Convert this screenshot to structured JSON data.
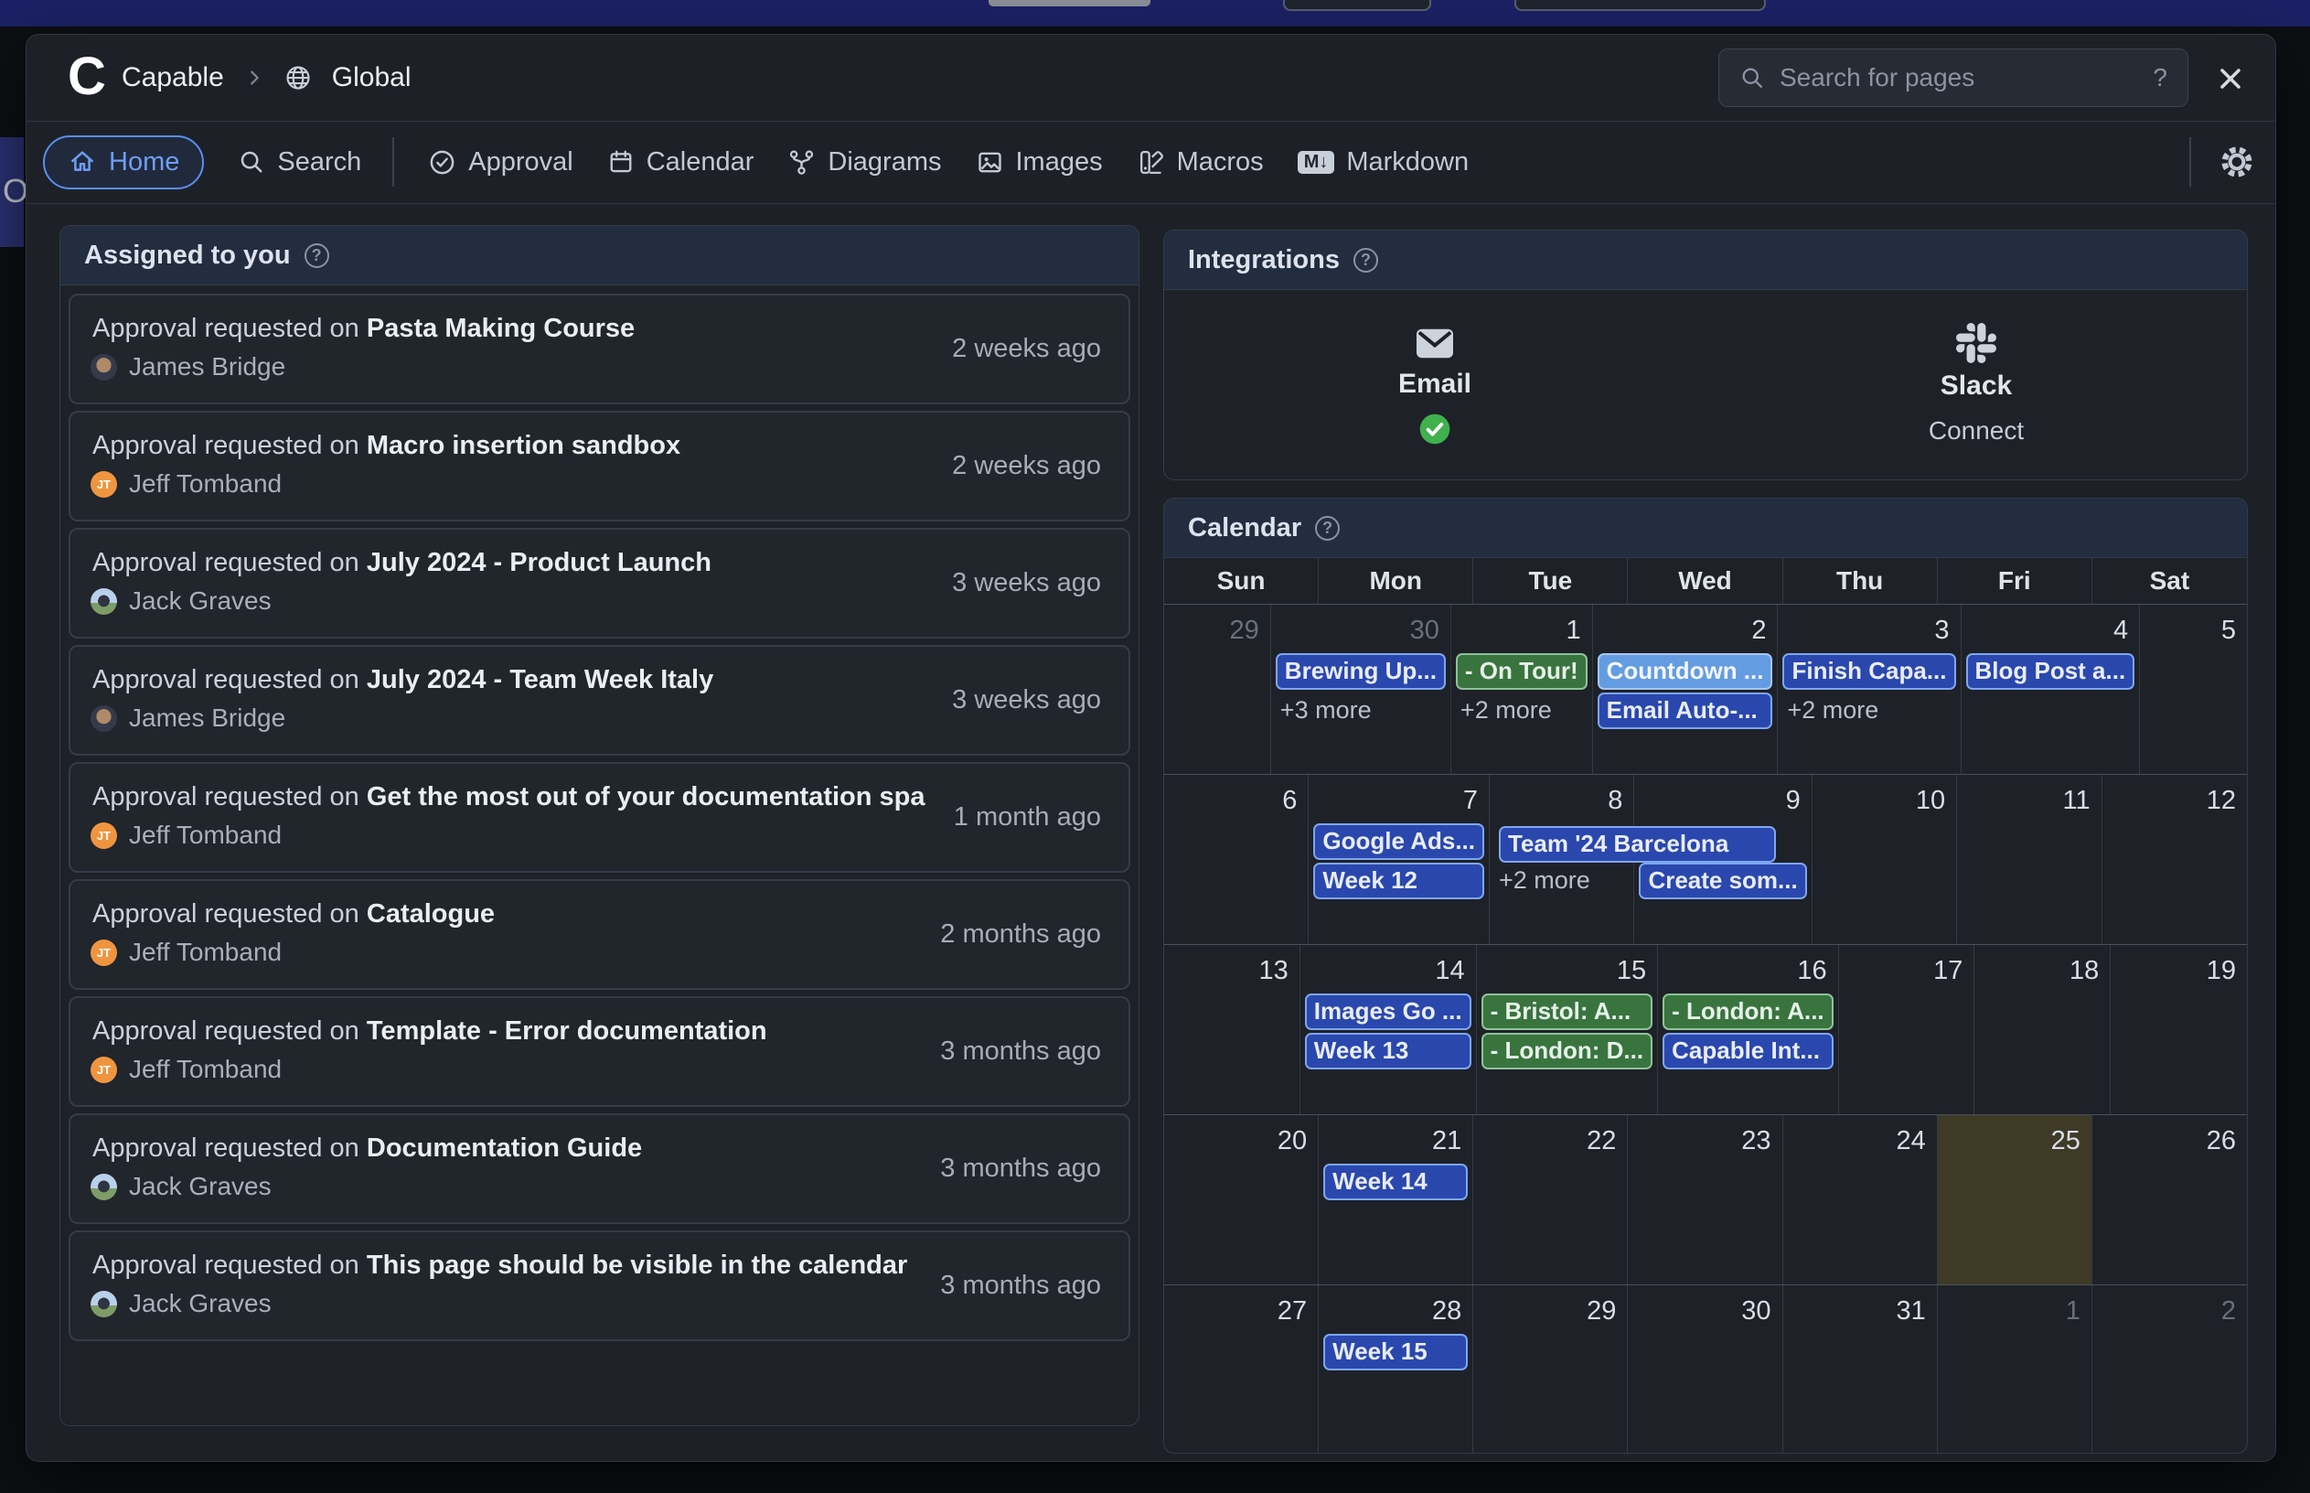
{
  "background": {
    "partial_letter": "O"
  },
  "header": {
    "logo_letter": "C",
    "app_name": "Capable",
    "space_name": "Global",
    "search_placeholder": "Search for pages",
    "search_hint": "?"
  },
  "nav": {
    "items": [
      {
        "id": "home",
        "label": "Home",
        "active": true
      },
      {
        "id": "search",
        "label": "Search"
      },
      {
        "id": "approval",
        "label": "Approval",
        "divider_before": true
      },
      {
        "id": "calendar",
        "label": "Calendar"
      },
      {
        "id": "diagrams",
        "label": "Diagrams"
      },
      {
        "id": "images",
        "label": "Images"
      },
      {
        "id": "macros",
        "label": "Macros"
      },
      {
        "id": "markdown",
        "label": "Markdown"
      }
    ]
  },
  "assigned": {
    "title": "Assigned to you",
    "items": [
      {
        "prefix": "Approval requested on ",
        "page": "Pasta Making Course",
        "user": "James Bridge",
        "avatar": "james",
        "time": "2 weeks ago"
      },
      {
        "prefix": "Approval requested on ",
        "page": "Macro insertion sandbox",
        "user": "Jeff Tomband",
        "avatar": "jt",
        "initials": "JT",
        "time": "2 weeks ago"
      },
      {
        "prefix": "Approval requested on ",
        "page": "July 2024 - Product Launch",
        "user": "Jack Graves",
        "avatar": "jack",
        "time": "3 weeks ago"
      },
      {
        "prefix": "Approval requested on ",
        "page": "July 2024 - Team Week Italy",
        "user": "James Bridge",
        "avatar": "james",
        "time": "3 weeks ago"
      },
      {
        "prefix": "Approval requested on ",
        "page": "Get the most out of your documentation spa",
        "user": "Jeff Tomband",
        "avatar": "jt",
        "initials": "JT",
        "time": "1 month ago"
      },
      {
        "prefix": "Approval requested on ",
        "page": "Catalogue",
        "user": "Jeff Tomband",
        "avatar": "jt",
        "initials": "JT",
        "time": "2 months ago"
      },
      {
        "prefix": "Approval requested on ",
        "page": "Template - Error documentation",
        "user": "Jeff Tomband",
        "avatar": "jt",
        "initials": "JT",
        "time": "3 months ago"
      },
      {
        "prefix": "Approval requested on ",
        "page": "Documentation Guide",
        "user": "Jack Graves",
        "avatar": "jack",
        "time": "3 months ago"
      },
      {
        "prefix": "Approval requested on ",
        "page": "This page should be visible in the calendar",
        "user": "Jack Graves",
        "avatar": "jack",
        "time": "3 months ago"
      }
    ]
  },
  "integrations": {
    "title": "Integrations",
    "items": [
      {
        "name": "Email",
        "status": "connected"
      },
      {
        "name": "Slack",
        "action": "Connect"
      }
    ]
  },
  "calendar": {
    "title": "Calendar",
    "day_names": [
      "Sun",
      "Mon",
      "Tue",
      "Wed",
      "Thu",
      "Fri",
      "Sat"
    ],
    "weeks": [
      {
        "days": [
          {
            "num": 29,
            "outside": true
          },
          {
            "num": 30,
            "outside": true,
            "events": [
              {
                "label": "Brewing Up...",
                "color": "blue"
              },
              {
                "more": "+3 more"
              }
            ]
          },
          {
            "num": 1,
            "events": [
              {
                "label": "- On Tour!",
                "color": "green"
              },
              {
                "more": "+2 more"
              }
            ]
          },
          {
            "num": 2,
            "events": [
              {
                "label": "Countdown ...",
                "color": "lightblue"
              },
              {
                "label": "Email Auto-...",
                "color": "blue"
              }
            ]
          },
          {
            "num": 3,
            "events": [
              {
                "label": "Finish Capa...",
                "color": "blue"
              },
              {
                "more": "+2 more"
              }
            ]
          },
          {
            "num": 4,
            "events": [
              {
                "label": "Blog Post a...",
                "color": "blue"
              }
            ]
          },
          {
            "num": 5
          }
        ]
      },
      {
        "days": [
          {
            "num": 6
          },
          {
            "num": 7,
            "events": [
              {
                "label": "Google Ads...",
                "color": "blue"
              },
              {
                "label": "Week 12",
                "color": "blue"
              }
            ]
          },
          {
            "num": 8,
            "events": [
              {
                "label": "Team '24 Barcelona",
                "color": "blue",
                "span": 2
              },
              {
                "more": "+2 more"
              }
            ]
          },
          {
            "num": 9,
            "events": [
              {
                "spacer": true
              },
              {
                "label": "Create som...",
                "color": "blue"
              }
            ]
          },
          {
            "num": 10
          },
          {
            "num": 11
          },
          {
            "num": 12
          }
        ]
      },
      {
        "days": [
          {
            "num": 13
          },
          {
            "num": 14,
            "events": [
              {
                "label": "Images Go ...",
                "color": "blue"
              },
              {
                "label": "Week 13",
                "color": "blue"
              }
            ]
          },
          {
            "num": 15,
            "events": [
              {
                "label": "- Bristol: A...",
                "color": "green"
              },
              {
                "label": "- London: D...",
                "color": "green"
              }
            ]
          },
          {
            "num": 16,
            "events": [
              {
                "label": "- London: A...",
                "color": "green"
              },
              {
                "label": "Capable Int...",
                "color": "blue"
              }
            ]
          },
          {
            "num": 17
          },
          {
            "num": 18
          },
          {
            "num": 19
          }
        ]
      },
      {
        "days": [
          {
            "num": 20
          },
          {
            "num": 21,
            "events": [
              {
                "label": "Week 14",
                "color": "blue"
              }
            ]
          },
          {
            "num": 22
          },
          {
            "num": 23
          },
          {
            "num": 24
          },
          {
            "num": 25,
            "today": true
          },
          {
            "num": 26
          }
        ]
      },
      {
        "days": [
          {
            "num": 27
          },
          {
            "num": 28,
            "events": [
              {
                "label": "Week 15",
                "color": "blue"
              }
            ]
          },
          {
            "num": 29
          },
          {
            "num": 30
          },
          {
            "num": 31
          },
          {
            "num": 1,
            "outside": true
          },
          {
            "num": 2,
            "outside": true
          }
        ]
      }
    ]
  },
  "colors": {
    "topbar_navy": "#1c2166",
    "accent_blue": "#5b8df0",
    "event_blue": "#2a47ae",
    "event_green": "#39743f",
    "event_lightblue": "#649ce2",
    "today_highlight": "#3e3a26",
    "connected_green": "#3fb14d",
    "avatar_orange": "#f0953f"
  }
}
